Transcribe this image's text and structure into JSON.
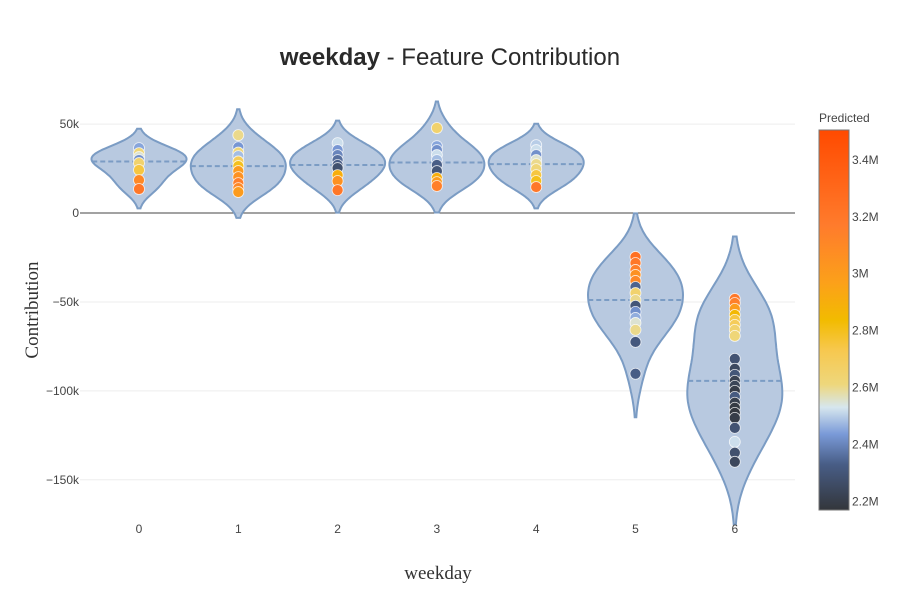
{
  "chart_data": {
    "type": "violin",
    "title_bold": "weekday",
    "title_rest": " - Feature Contribution",
    "xlabel": "weekday",
    "ylabel": "Contribution",
    "categories": [
      "0",
      "1",
      "2",
      "3",
      "4",
      "5",
      "6"
    ],
    "ylim": [
      -167000,
      63000
    ],
    "yticks": [
      50000,
      0,
      -50000,
      -100000,
      -150000
    ],
    "ytick_labels": [
      "50k",
      "0",
      "−50k",
      "−100k",
      "−150k"
    ],
    "grid": true,
    "fill_color": "#b4c6de",
    "line_color": "#7b9cc4",
    "colorbar": {
      "title": "Predicted",
      "cmin": 2170000,
      "cmax": 3505000,
      "tick_values": [
        2200000,
        2400000,
        2600000,
        2800000,
        3000000,
        3200000,
        3400000
      ],
      "tick_labels": [
        "2.2M",
        "2.4M",
        "2.6M",
        "2.8M",
        "3M",
        "3.2M",
        "3.4M"
      ],
      "colorscale": [
        [
          0,
          "#33363b"
        ],
        [
          0.12,
          "#485d86"
        ],
        [
          0.2,
          "#7a9ad8"
        ],
        [
          0.27,
          "#d6e6ee"
        ],
        [
          0.33,
          "#eed77c"
        ],
        [
          0.42,
          "#f7c84f"
        ],
        [
          0.5,
          "#f2bb00"
        ],
        [
          0.6,
          "#fca01a"
        ],
        [
          0.75,
          "#ff7b2c"
        ],
        [
          1,
          "#ff4a00"
        ]
      ]
    },
    "series": [
      {
        "category": "0",
        "points": [
          [
            36500,
            2450000
          ],
          [
            33700,
            2620000
          ],
          [
            31500,
            2550000
          ],
          [
            29800,
            2420000
          ],
          [
            28100,
            2650000
          ],
          [
            24200,
            2750000
          ],
          [
            18500,
            3100000
          ],
          [
            13500,
            3200000
          ]
        ]
      },
      {
        "category": "1",
        "points": [
          [
            43800,
            2600000
          ],
          [
            37000,
            2430000
          ],
          [
            34000,
            2620000
          ],
          [
            32000,
            2480000
          ],
          [
            29000,
            2700000
          ],
          [
            26400,
            2800000
          ],
          [
            23600,
            3000000
          ],
          [
            20200,
            3050000
          ],
          [
            16800,
            3150000
          ],
          [
            14000,
            3100000
          ],
          [
            11800,
            3000000
          ]
        ]
      },
      {
        "category": "2",
        "points": [
          [
            39300,
            2520000
          ],
          [
            35400,
            2430000
          ],
          [
            32600,
            2400000
          ],
          [
            29800,
            2360000
          ],
          [
            27000,
            2330000
          ],
          [
            25300,
            2280000
          ],
          [
            21300,
            2900000
          ],
          [
            18000,
            3050000
          ],
          [
            12900,
            3200000
          ]
        ]
      },
      {
        "category": "3",
        "points": [
          [
            47800,
            2650000
          ],
          [
            37600,
            2450000
          ],
          [
            35400,
            2420000
          ],
          [
            32600,
            2520000
          ],
          [
            29800,
            2480000
          ],
          [
            27000,
            2330000
          ],
          [
            23600,
            2300000
          ],
          [
            19700,
            2900000
          ],
          [
            17400,
            3000000
          ],
          [
            15200,
            3150000
          ]
        ]
      },
      {
        "category": "4",
        "points": [
          [
            38200,
            2500000
          ],
          [
            35400,
            2520000
          ],
          [
            32600,
            2420000
          ],
          [
            29800,
            2550000
          ],
          [
            27500,
            2600000
          ],
          [
            24700,
            2620000
          ],
          [
            21300,
            2750000
          ],
          [
            18000,
            2800000
          ],
          [
            14600,
            3200000
          ]
        ]
      },
      {
        "category": "5",
        "points": [
          [
            -24700,
            3250000
          ],
          [
            -28100,
            3200000
          ],
          [
            -32000,
            3150000
          ],
          [
            -34800,
            3050000
          ],
          [
            -38200,
            3100000
          ],
          [
            -41600,
            2340000
          ],
          [
            -45000,
            2650000
          ],
          [
            -48900,
            2600000
          ],
          [
            -52200,
            2300000
          ],
          [
            -55600,
            2420000
          ],
          [
            -59000,
            2460000
          ],
          [
            -61800,
            2550000
          ],
          [
            -65700,
            2600000
          ],
          [
            -72500,
            2310000
          ],
          [
            -90400,
            2330000
          ]
        ]
      },
      {
        "category": "6",
        "points": [
          [
            -48300,
            3200000
          ],
          [
            -50600,
            3150000
          ],
          [
            -53900,
            3000000
          ],
          [
            -57300,
            2850000
          ],
          [
            -60100,
            2750000
          ],
          [
            -62900,
            2700000
          ],
          [
            -65700,
            2650000
          ],
          [
            -69100,
            2620000
          ],
          [
            -82000,
            2290000
          ],
          [
            -87600,
            2250000
          ],
          [
            -91000,
            2300000
          ],
          [
            -94400,
            2220000
          ],
          [
            -97200,
            2230000
          ],
          [
            -100000,
            2200000
          ],
          [
            -103400,
            2320000
          ],
          [
            -106700,
            2210000
          ],
          [
            -109500,
            2190000
          ],
          [
            -112400,
            2180000
          ],
          [
            -115200,
            2200000
          ],
          [
            -120800,
            2290000
          ],
          [
            -128700,
            2520000
          ],
          [
            -134800,
            2280000
          ],
          [
            -139900,
            2240000
          ]
        ]
      }
    ]
  }
}
